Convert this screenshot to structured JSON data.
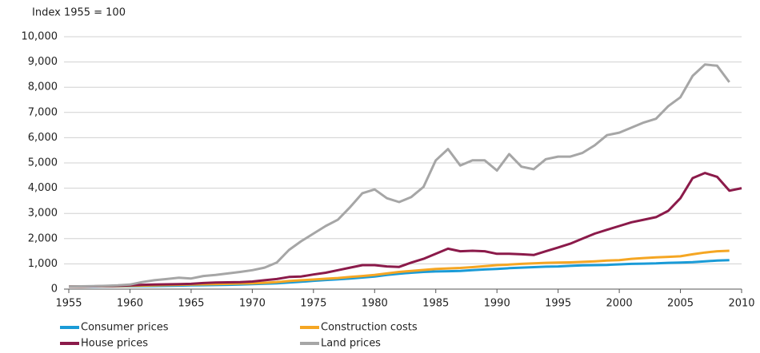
{
  "chart_data": {
    "type": "line",
    "title": "Index 1955 = 100",
    "x": [
      1955,
      1956,
      1957,
      1958,
      1959,
      1960,
      1961,
      1962,
      1963,
      1964,
      1965,
      1966,
      1967,
      1968,
      1969,
      1970,
      1971,
      1972,
      1973,
      1974,
      1975,
      1976,
      1977,
      1978,
      1979,
      1980,
      1981,
      1982,
      1983,
      1984,
      1985,
      1986,
      1987,
      1988,
      1989,
      1990,
      1991,
      1992,
      1993,
      1994,
      1995,
      1996,
      1997,
      1998,
      1999,
      2000,
      2001,
      2002,
      2003,
      2004,
      2005,
      2006,
      2007,
      2008,
      2009,
      2010
    ],
    "xlim": [
      1955,
      2010
    ],
    "xticks": [
      1955,
      1960,
      1965,
      1970,
      1975,
      1980,
      1985,
      1990,
      1995,
      2000,
      2005,
      2010
    ],
    "ylim": [
      0,
      10000
    ],
    "yticks": [
      0,
      {
        "value": 1000,
        "label": "1,000"
      },
      {
        "value": 2000,
        "label": "2,000"
      },
      {
        "value": 3000,
        "label": "3,000"
      },
      {
        "value": 4000,
        "label": "4,000"
      },
      {
        "value": 5000,
        "label": "5,000"
      },
      {
        "value": 6000,
        "label": "6,000"
      },
      {
        "value": 7000,
        "label": "7,000"
      },
      {
        "value": 8000,
        "label": "8,000"
      },
      {
        "value": 9000,
        "label": "9,000"
      },
      {
        "value": 10000,
        "label": "10,000"
      }
    ],
    "grid": true,
    "series": [
      {
        "name": "Consumer prices",
        "color": "#1a9bd7",
        "values": [
          100,
          102,
          105,
          108,
          110,
          115,
          120,
          125,
          130,
          140,
          150,
          155,
          160,
          170,
          185,
          200,
          215,
          230,
          260,
          290,
          330,
          360,
          390,
          420,
          460,
          500,
          560,
          610,
          650,
          680,
          700,
          710,
          720,
          750,
          780,
          800,
          830,
          850,
          870,
          890,
          900,
          920,
          940,
          950,
          960,
          980,
          1000,
          1010,
          1020,
          1040,
          1050,
          1070,
          1100,
          1130,
          1150,
          null
        ]
      },
      {
        "name": "Construction costs",
        "color": "#f5a623",
        "values": [
          100,
          105,
          110,
          115,
          120,
          130,
          140,
          150,
          160,
          170,
          180,
          190,
          200,
          210,
          220,
          230,
          250,
          280,
          320,
          350,
          380,
          410,
          440,
          480,
          520,
          560,
          620,
          680,
          720,
          760,
          800,
          820,
          840,
          870,
          910,
          950,
          970,
          1000,
          1020,
          1040,
          1050,
          1060,
          1080,
          1100,
          1130,
          1150,
          1200,
          1230,
          1260,
          1280,
          1300,
          1380,
          1450,
          1500,
          1520,
          null
        ]
      },
      {
        "name": "House prices",
        "color": "#8b1a4a",
        "values": [
          100,
          105,
          110,
          120,
          130,
          150,
          170,
          180,
          190,
          200,
          210,
          240,
          260,
          270,
          280,
          300,
          350,
          400,
          480,
          500,
          580,
          650,
          750,
          850,
          950,
          950,
          900,
          880,
          1050,
          1200,
          1400,
          1600,
          1500,
          1520,
          1500,
          1400,
          1400,
          1380,
          1350,
          1500,
          1650,
          1800,
          2000,
          2200,
          2350,
          2500,
          2650,
          2750,
          2850,
          3100,
          3600,
          4400,
          4600,
          4450,
          3900,
          4000
        ]
      },
      {
        "name": "Land prices",
        "color": "#a6a6a6",
        "values": [
          100,
          110,
          120,
          130,
          150,
          180,
          280,
          350,
          400,
          450,
          420,
          520,
          560,
          620,
          680,
          750,
          850,
          1050,
          1550,
          1900,
          2200,
          2500,
          2750,
          3250,
          3800,
          3950,
          3600,
          3450,
          3650,
          4050,
          5100,
          5550,
          4900,
          5100,
          5100,
          4700,
          5350,
          4850,
          4750,
          5150,
          5250,
          5250,
          5400,
          5700,
          6100,
          6200,
          6400,
          6600,
          6750,
          7250,
          7600,
          8450,
          8900,
          8850,
          8200,
          null
        ]
      }
    ]
  }
}
